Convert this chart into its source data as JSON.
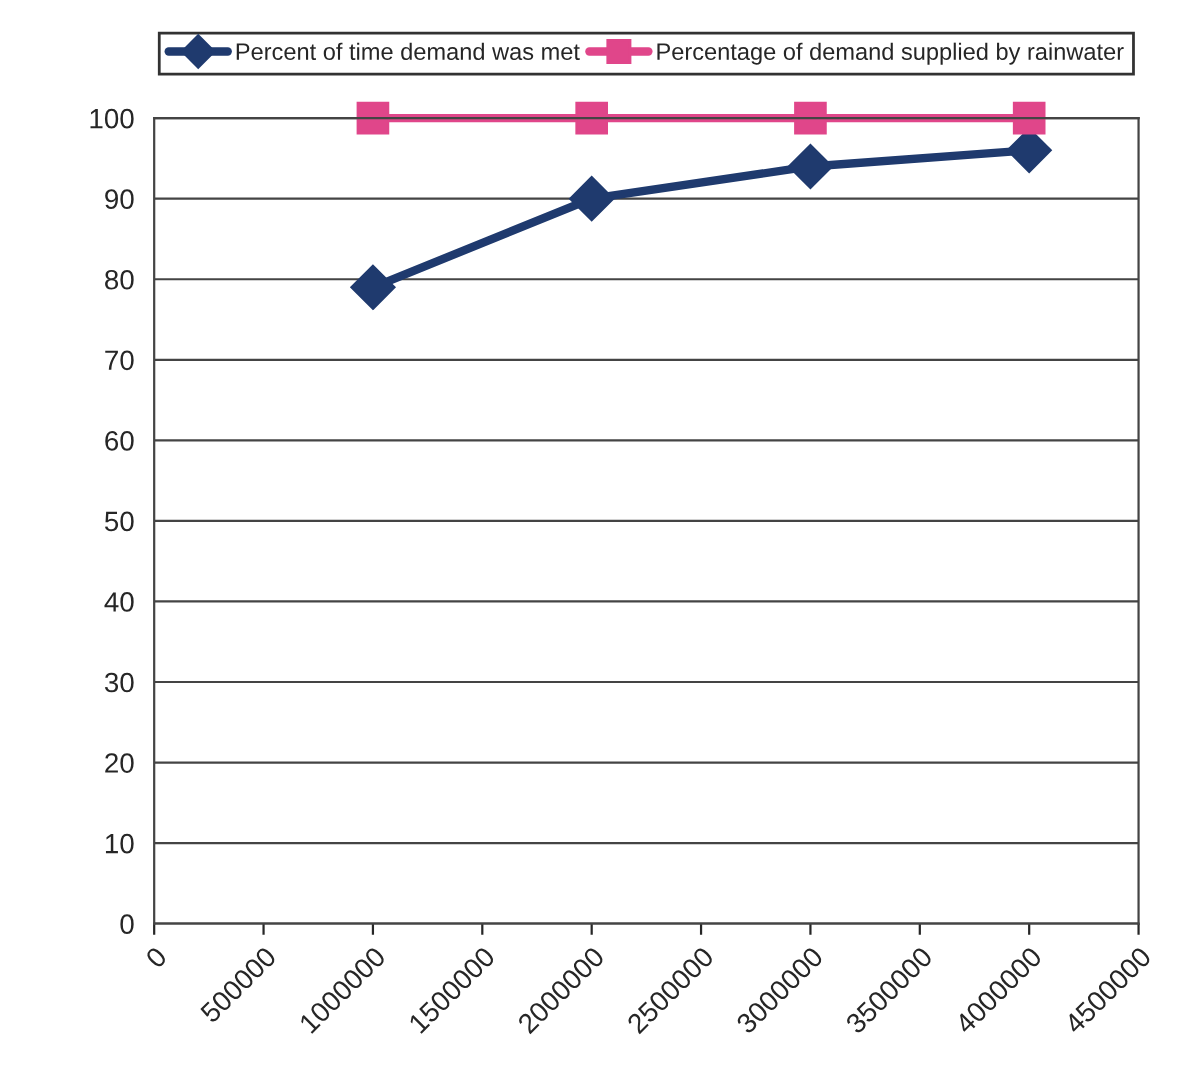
{
  "chart_data": {
    "type": "line",
    "x": [
      1000000,
      2000000,
      3000000,
      4000000
    ],
    "series": [
      {
        "name": "Percent of time demand was met",
        "color": "#1f3a6e",
        "values": [
          79,
          90,
          94,
          96
        ],
        "marker": "diamond"
      },
      {
        "name": "Percentage of demand supplied by rainwater",
        "color": "#e0468a",
        "values": [
          100,
          100,
          100,
          100
        ],
        "marker": "square"
      }
    ],
    "xlim": [
      0,
      4500000
    ],
    "xticks": [
      0,
      500000,
      1000000,
      1500000,
      2000000,
      2500000,
      3000000,
      3500000,
      4000000,
      4500000
    ],
    "ylim": [
      0,
      100
    ],
    "yticks": [
      0,
      10,
      20,
      30,
      40,
      50,
      60,
      70,
      80,
      90,
      100
    ],
    "grid": "y",
    "legend": "top",
    "line_style": "solid"
  }
}
